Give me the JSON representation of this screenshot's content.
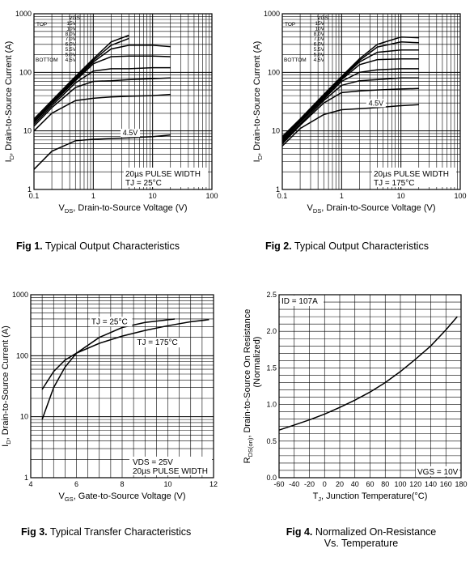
{
  "chart_data": [
    {
      "type": "line",
      "caption_num": "Fig 1.",
      "caption_text": "Typical Output Characteristics",
      "xlabel_main": "V",
      "xlabel_sub": "DS",
      "xlabel_rest": ", Drain-to-Source Voltage (V)",
      "ylabel_main": "I",
      "ylabel_sub": "D",
      "ylabel_rest": ", Drain-to-Source Current (A)",
      "xscale": "log",
      "yscale": "log",
      "xlim": [
        0.1,
        100
      ],
      "ylim": [
        1,
        1000
      ],
      "xticks": [
        "0.1",
        "1",
        "10",
        "100"
      ],
      "yticks": [
        "1",
        "10",
        "100",
        "1000"
      ],
      "legend": {
        "header": "VGS",
        "top_label": "TOP",
        "bottom_label": "BOTTOM",
        "items": [
          "15V",
          "10V",
          "8.0V",
          "7.0V",
          "6.0V",
          "5.5V",
          "5.0V",
          "4.5V"
        ]
      },
      "curve_label": "4.5V",
      "note_line1": "20µs PULSE WIDTH",
      "note_line2": "TJ = 25°C",
      "x": [
        0.1,
        0.2,
        0.5,
        1,
        2,
        4,
        10,
        20
      ],
      "series": [
        {
          "name": "15V",
          "values": [
            16,
            33,
            85,
            170,
            330,
            430,
            null,
            null
          ]
        },
        {
          "name": "10V",
          "values": [
            15,
            31,
            80,
            160,
            290,
            380,
            null,
            null
          ]
        },
        {
          "name": "8.0V",
          "values": [
            14.5,
            30,
            76,
            150,
            250,
            290,
            290,
            275
          ]
        },
        {
          "name": "7.0V",
          "values": [
            14,
            29,
            72,
            140,
            185,
            190,
            190,
            185
          ]
        },
        {
          "name": "6.0V",
          "values": [
            13,
            27,
            66,
            105,
            115,
            115,
            120,
            120
          ]
        },
        {
          "name": "5.5V",
          "values": [
            12,
            25,
            55,
            70,
            72,
            75,
            78,
            80
          ]
        },
        {
          "name": "5.0V",
          "values": [
            10,
            20,
            33,
            36,
            38,
            39,
            40,
            42
          ]
        },
        {
          "name": "4.5V",
          "values": [
            2.2,
            4.5,
            6.8,
            7.2,
            7.4,
            7.6,
            8,
            8.5
          ]
        }
      ]
    },
    {
      "type": "line",
      "caption_num": "Fig 2.",
      "caption_text": "Typical Output Characteristics",
      "xlabel_main": "V",
      "xlabel_sub": "DS",
      "xlabel_rest": ", Drain-to-Source Voltage (V)",
      "ylabel_main": "I",
      "ylabel_sub": "D",
      "ylabel_rest": ", Drain-to-Source Current (A)",
      "xscale": "log",
      "yscale": "log",
      "xlim": [
        0.1,
        100
      ],
      "ylim": [
        1,
        1000
      ],
      "xticks": [
        "0.1",
        "1",
        "10",
        "100"
      ],
      "yticks": [
        "1",
        "10",
        "100",
        "1000"
      ],
      "legend": {
        "header": "VGS",
        "top_label": "TOP",
        "bottom_label": "BOTTOM",
        "items": [
          "15V",
          "10V",
          "8.0V",
          "7.0V",
          "6.0V",
          "5.5V",
          "5.0V",
          "4.5V"
        ]
      },
      "curve_label": "4.5V",
      "note_line1": "20µs PULSE WIDTH",
      "note_line2": "TJ = 175°C",
      "x": [
        0.1,
        0.2,
        0.5,
        1,
        2,
        4,
        10,
        20
      ],
      "series": [
        {
          "name": "15V",
          "values": [
            8,
            16,
            42,
            85,
            170,
            300,
            400,
            390
          ]
        },
        {
          "name": "10V",
          "values": [
            7.5,
            15.5,
            40,
            82,
            160,
            270,
            330,
            320
          ]
        },
        {
          "name": "8.0V",
          "values": [
            7.2,
            15,
            38,
            78,
            150,
            220,
            240,
            240
          ]
        },
        {
          "name": "7.0V",
          "values": [
            7,
            14.5,
            37,
            75,
            135,
            165,
            170,
            170
          ]
        },
        {
          "name": "6.0V",
          "values": [
            6.7,
            14,
            35,
            70,
            100,
            110,
            115,
            115
          ]
        },
        {
          "name": "5.5V",
          "values": [
            6.4,
            13,
            33,
            60,
            72,
            75,
            80,
            80
          ]
        },
        {
          "name": "5.0V",
          "values": [
            6,
            12.5,
            30,
            45,
            48,
            50,
            52,
            53
          ]
        },
        {
          "name": "4.5V",
          "values": [
            5.5,
            11,
            19,
            23,
            24,
            25,
            27,
            28
          ]
        }
      ]
    },
    {
      "type": "line",
      "caption_num": "Fig 3.",
      "caption_text": "Typical Transfer Characteristics",
      "xlabel_main": "V",
      "xlabel_sub": "GS",
      "xlabel_rest": ", Gate-to-Source Voltage (V)",
      "ylabel_main": "I",
      "ylabel_sub": "D",
      "ylabel_rest": ", Drain-to-Source Current (A)",
      "xscale": "linear",
      "yscale": "log",
      "xlim": [
        4,
        12
      ],
      "ylim": [
        1,
        1000
      ],
      "xticks": [
        "4",
        "6",
        "8",
        "10",
        "12"
      ],
      "yticks": [
        "1",
        "10",
        "100",
        "1000"
      ],
      "label_25": "TJ = 25°C",
      "label_175": "TJ = 175°C",
      "note_line1": "VDS = 25V",
      "note_line2": "20µs PULSE WIDTH",
      "series": [
        {
          "name": "TJ = 25°C",
          "x": [
            4.5,
            5,
            5.5,
            6,
            7,
            8,
            9,
            10.3
          ],
          "values": [
            9,
            30,
            65,
            110,
            200,
            290,
            350,
            400
          ]
        },
        {
          "name": "TJ = 175°C",
          "x": [
            4.5,
            5,
            5.5,
            6,
            7,
            8,
            9,
            10,
            11,
            11.8
          ],
          "values": [
            28,
            55,
            85,
            110,
            160,
            210,
            260,
            310,
            360,
            390
          ]
        }
      ]
    },
    {
      "type": "line",
      "caption_num": "Fig 4.",
      "caption_text": "Normalized On-Resistance",
      "caption_text2": "Vs. Temperature",
      "xlabel_main": "T",
      "xlabel_sub": "J",
      "xlabel_rest": ", Junction Temperature(°C)",
      "ylabel_main": "R",
      "ylabel_sub": "DS(on)",
      "ylabel_rest": ", Drain-to-Source On Resistance",
      "ylabel_line2": "(Normalized)",
      "xscale": "linear",
      "yscale": "linear",
      "xlim": [
        -60,
        180
      ],
      "ylim": [
        0,
        2.5
      ],
      "xticks": [
        "-60",
        "-40",
        "-20",
        "0",
        "20",
        "40",
        "60",
        "80",
        "100",
        "120",
        "140",
        "160",
        "180"
      ],
      "yticks": [
        "0.0",
        "0.5",
        "1.0",
        "1.5",
        "2.0",
        "2.5"
      ],
      "id_label": "ID = 107A",
      "vgs_label": "VGS = 10V",
      "series": [
        {
          "name": "RDS(on)",
          "x": [
            -60,
            -40,
            -20,
            0,
            20,
            40,
            60,
            80,
            100,
            120,
            140,
            160,
            175
          ],
          "values": [
            0.65,
            0.72,
            0.79,
            0.87,
            0.96,
            1.06,
            1.17,
            1.3,
            1.45,
            1.62,
            1.8,
            2.02,
            2.2
          ]
        }
      ]
    }
  ]
}
